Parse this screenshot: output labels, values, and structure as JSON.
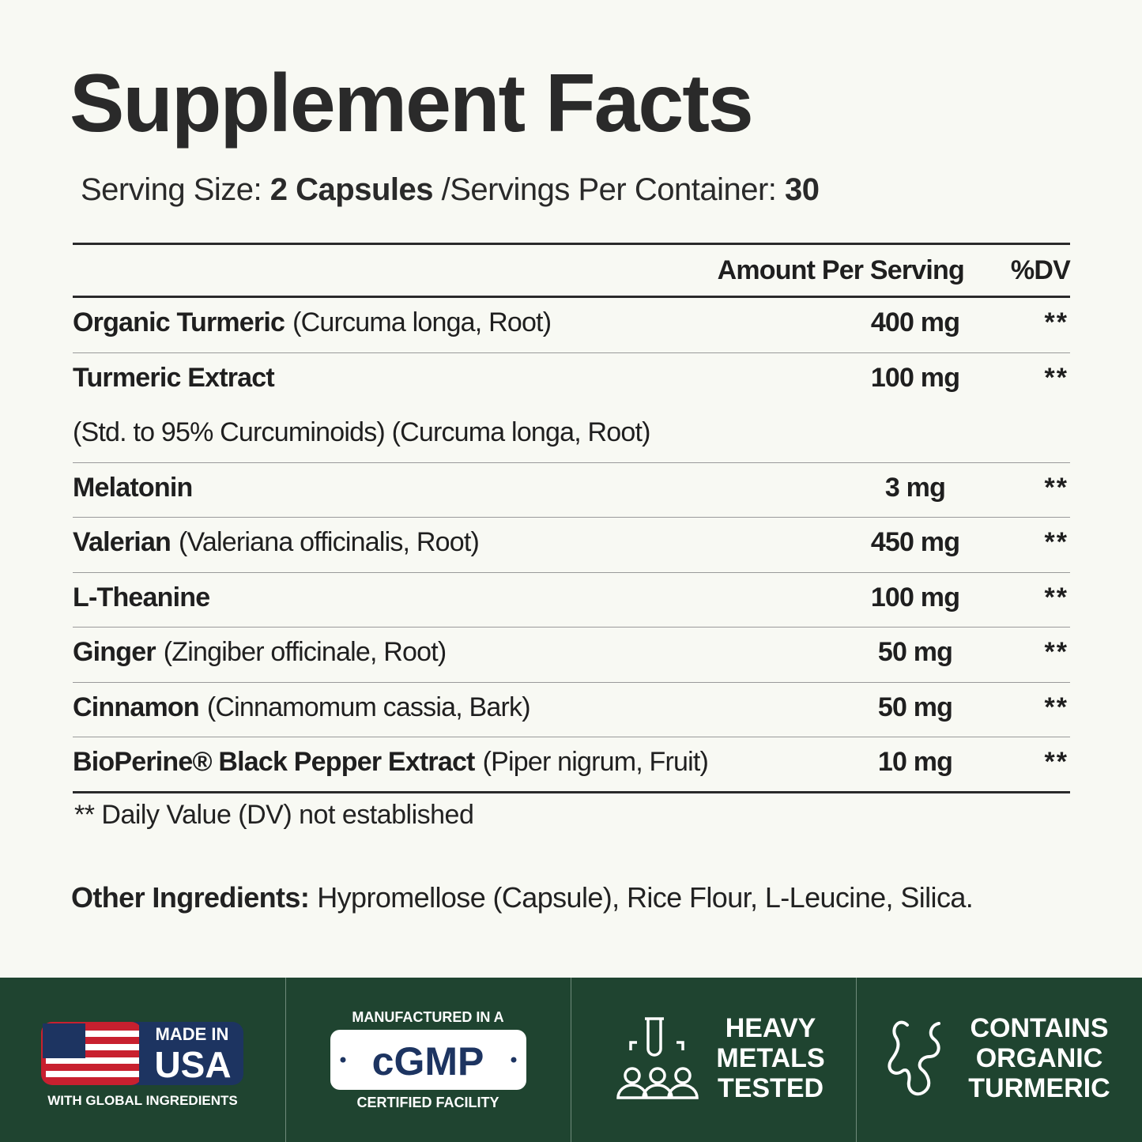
{
  "title": "Supplement Facts",
  "serving": {
    "size_label": "Serving Size:",
    "size": "2 Capsules",
    "per_label": "/Servings Per Container:",
    "per": "30"
  },
  "table": {
    "header": [
      "Amount Per Serving",
      "%DV"
    ],
    "rows": [
      {
        "name": "Organic Turmeric",
        "detail": "(Curcuma longa, Root)",
        "amount": "400 mg",
        "dv": "**"
      },
      {
        "name": "Turmeric Extract",
        "note": "(Std. to 95% Curcuminoids) (Curcuma longa, Root)",
        "amount": "100 mg",
        "dv": "**"
      },
      {
        "name": "Melatonin",
        "amount": "3 mg",
        "dv": "**"
      },
      {
        "name": "Valerian",
        "detail": "(Valeriana officinalis, Root)",
        "amount": "450 mg",
        "dv": "**"
      },
      {
        "name": "L-Theanine",
        "amount": "100 mg",
        "dv": "**"
      },
      {
        "name": "Ginger",
        "detail": "(Zingiber officinale, Root)",
        "amount": "50 mg",
        "dv": "**"
      },
      {
        "name": "Cinnamon",
        "detail": "(Cinnamomum cassia, Bark)",
        "amount": "50 mg",
        "dv": "**"
      },
      {
        "name": "BioPerine® Black Pepper Extract",
        "detail": "(Piper nigrum, Fruit)",
        "amount": "10 mg",
        "dv": "**"
      }
    ]
  },
  "footnote": "** Daily Value (DV) not established",
  "other_ingredients": {
    "label": "Other Ingredients:",
    "text": "Hypromellose (Capsule), Rice Flour, L-Leucine, Silica."
  },
  "badges": [
    {
      "lines": [
        "MADE IN",
        "USA",
        "WITH GLOBAL INGREDIENTS"
      ]
    },
    {
      "lines": [
        "MANUFACTURED IN A",
        "cGMP",
        "CERTIFIED FACILITY"
      ]
    },
    {
      "lines": [
        "HEAVY",
        "METALS",
        "TESTED"
      ]
    },
    {
      "lines": [
        "CONTAINS",
        "ORGANIC",
        "TURMERIC"
      ]
    }
  ]
}
